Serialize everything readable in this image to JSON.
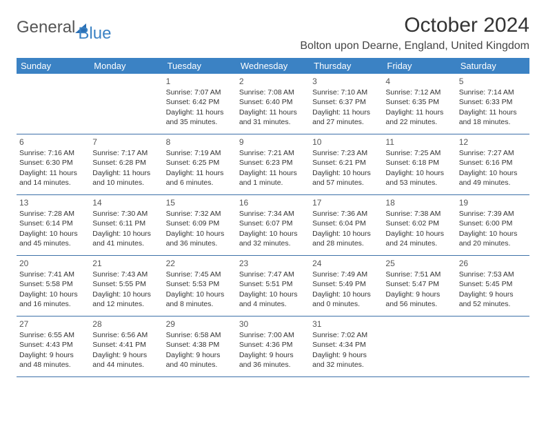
{
  "header": {
    "logo_general": "General",
    "logo_blue": "Blue",
    "month_title": "October 2024",
    "location": "Bolton upon Dearne, England, United Kingdom"
  },
  "colors": {
    "header_bg": "#3b82c4",
    "header_text": "#ffffff",
    "row_border": "#3b6fa8",
    "body_text": "#333333",
    "logo_accent": "#2a6fb5"
  },
  "day_names": [
    "Sunday",
    "Monday",
    "Tuesday",
    "Wednesday",
    "Thursday",
    "Friday",
    "Saturday"
  ],
  "weeks": [
    [
      null,
      null,
      {
        "n": "1",
        "sr": "Sunrise: 7:07 AM",
        "ss": "Sunset: 6:42 PM",
        "d1": "Daylight: 11 hours",
        "d2": "and 35 minutes."
      },
      {
        "n": "2",
        "sr": "Sunrise: 7:08 AM",
        "ss": "Sunset: 6:40 PM",
        "d1": "Daylight: 11 hours",
        "d2": "and 31 minutes."
      },
      {
        "n": "3",
        "sr": "Sunrise: 7:10 AM",
        "ss": "Sunset: 6:37 PM",
        "d1": "Daylight: 11 hours",
        "d2": "and 27 minutes."
      },
      {
        "n": "4",
        "sr": "Sunrise: 7:12 AM",
        "ss": "Sunset: 6:35 PM",
        "d1": "Daylight: 11 hours",
        "d2": "and 22 minutes."
      },
      {
        "n": "5",
        "sr": "Sunrise: 7:14 AM",
        "ss": "Sunset: 6:33 PM",
        "d1": "Daylight: 11 hours",
        "d2": "and 18 minutes."
      }
    ],
    [
      {
        "n": "6",
        "sr": "Sunrise: 7:16 AM",
        "ss": "Sunset: 6:30 PM",
        "d1": "Daylight: 11 hours",
        "d2": "and 14 minutes."
      },
      {
        "n": "7",
        "sr": "Sunrise: 7:17 AM",
        "ss": "Sunset: 6:28 PM",
        "d1": "Daylight: 11 hours",
        "d2": "and 10 minutes."
      },
      {
        "n": "8",
        "sr": "Sunrise: 7:19 AM",
        "ss": "Sunset: 6:25 PM",
        "d1": "Daylight: 11 hours",
        "d2": "and 6 minutes."
      },
      {
        "n": "9",
        "sr": "Sunrise: 7:21 AM",
        "ss": "Sunset: 6:23 PM",
        "d1": "Daylight: 11 hours",
        "d2": "and 1 minute."
      },
      {
        "n": "10",
        "sr": "Sunrise: 7:23 AM",
        "ss": "Sunset: 6:21 PM",
        "d1": "Daylight: 10 hours",
        "d2": "and 57 minutes."
      },
      {
        "n": "11",
        "sr": "Sunrise: 7:25 AM",
        "ss": "Sunset: 6:18 PM",
        "d1": "Daylight: 10 hours",
        "d2": "and 53 minutes."
      },
      {
        "n": "12",
        "sr": "Sunrise: 7:27 AM",
        "ss": "Sunset: 6:16 PM",
        "d1": "Daylight: 10 hours",
        "d2": "and 49 minutes."
      }
    ],
    [
      {
        "n": "13",
        "sr": "Sunrise: 7:28 AM",
        "ss": "Sunset: 6:14 PM",
        "d1": "Daylight: 10 hours",
        "d2": "and 45 minutes."
      },
      {
        "n": "14",
        "sr": "Sunrise: 7:30 AM",
        "ss": "Sunset: 6:11 PM",
        "d1": "Daylight: 10 hours",
        "d2": "and 41 minutes."
      },
      {
        "n": "15",
        "sr": "Sunrise: 7:32 AM",
        "ss": "Sunset: 6:09 PM",
        "d1": "Daylight: 10 hours",
        "d2": "and 36 minutes."
      },
      {
        "n": "16",
        "sr": "Sunrise: 7:34 AM",
        "ss": "Sunset: 6:07 PM",
        "d1": "Daylight: 10 hours",
        "d2": "and 32 minutes."
      },
      {
        "n": "17",
        "sr": "Sunrise: 7:36 AM",
        "ss": "Sunset: 6:04 PM",
        "d1": "Daylight: 10 hours",
        "d2": "and 28 minutes."
      },
      {
        "n": "18",
        "sr": "Sunrise: 7:38 AM",
        "ss": "Sunset: 6:02 PM",
        "d1": "Daylight: 10 hours",
        "d2": "and 24 minutes."
      },
      {
        "n": "19",
        "sr": "Sunrise: 7:39 AM",
        "ss": "Sunset: 6:00 PM",
        "d1": "Daylight: 10 hours",
        "d2": "and 20 minutes."
      }
    ],
    [
      {
        "n": "20",
        "sr": "Sunrise: 7:41 AM",
        "ss": "Sunset: 5:58 PM",
        "d1": "Daylight: 10 hours",
        "d2": "and 16 minutes."
      },
      {
        "n": "21",
        "sr": "Sunrise: 7:43 AM",
        "ss": "Sunset: 5:55 PM",
        "d1": "Daylight: 10 hours",
        "d2": "and 12 minutes."
      },
      {
        "n": "22",
        "sr": "Sunrise: 7:45 AM",
        "ss": "Sunset: 5:53 PM",
        "d1": "Daylight: 10 hours",
        "d2": "and 8 minutes."
      },
      {
        "n": "23",
        "sr": "Sunrise: 7:47 AM",
        "ss": "Sunset: 5:51 PM",
        "d1": "Daylight: 10 hours",
        "d2": "and 4 minutes."
      },
      {
        "n": "24",
        "sr": "Sunrise: 7:49 AM",
        "ss": "Sunset: 5:49 PM",
        "d1": "Daylight: 10 hours",
        "d2": "and 0 minutes."
      },
      {
        "n": "25",
        "sr": "Sunrise: 7:51 AM",
        "ss": "Sunset: 5:47 PM",
        "d1": "Daylight: 9 hours",
        "d2": "and 56 minutes."
      },
      {
        "n": "26",
        "sr": "Sunrise: 7:53 AM",
        "ss": "Sunset: 5:45 PM",
        "d1": "Daylight: 9 hours",
        "d2": "and 52 minutes."
      }
    ],
    [
      {
        "n": "27",
        "sr": "Sunrise: 6:55 AM",
        "ss": "Sunset: 4:43 PM",
        "d1": "Daylight: 9 hours",
        "d2": "and 48 minutes."
      },
      {
        "n": "28",
        "sr": "Sunrise: 6:56 AM",
        "ss": "Sunset: 4:41 PM",
        "d1": "Daylight: 9 hours",
        "d2": "and 44 minutes."
      },
      {
        "n": "29",
        "sr": "Sunrise: 6:58 AM",
        "ss": "Sunset: 4:38 PM",
        "d1": "Daylight: 9 hours",
        "d2": "and 40 minutes."
      },
      {
        "n": "30",
        "sr": "Sunrise: 7:00 AM",
        "ss": "Sunset: 4:36 PM",
        "d1": "Daylight: 9 hours",
        "d2": "and 36 minutes."
      },
      {
        "n": "31",
        "sr": "Sunrise: 7:02 AM",
        "ss": "Sunset: 4:34 PM",
        "d1": "Daylight: 9 hours",
        "d2": "and 32 minutes."
      },
      null,
      null
    ]
  ]
}
